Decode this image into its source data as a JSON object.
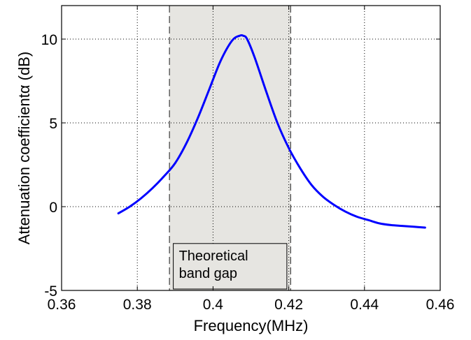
{
  "chart_data": {
    "type": "line",
    "title": "",
    "xlabel": "Frequency(MHz)",
    "ylabel": "Attenuation coefficientα (dB)",
    "xlim": [
      0.36,
      0.46
    ],
    "ylim": [
      -5,
      12
    ],
    "xticks": [
      0.36,
      0.38,
      0.4,
      0.42,
      0.44,
      0.46
    ],
    "xtick_labels": [
      "0.36",
      "0.38",
      "0.4",
      "0.42",
      "0.44",
      "0.46"
    ],
    "yticks": [
      -5,
      0,
      5,
      10
    ],
    "ytick_labels": [
      "-5",
      "0",
      "5",
      "10"
    ],
    "grid": true,
    "series": [
      {
        "color": "#0000ff",
        "x": [
          0.375,
          0.378,
          0.381,
          0.384,
          0.387,
          0.39,
          0.393,
          0.396,
          0.399,
          0.402,
          0.405,
          0.407,
          0.408,
          0.409,
          0.411,
          0.414,
          0.417,
          0.42,
          0.423,
          0.426,
          0.429,
          0.432,
          0.435,
          0.438,
          0.441,
          0.444,
          0.447,
          0.45,
          0.453,
          0.456
        ],
        "y": [
          -0.4,
          0.0,
          0.5,
          1.1,
          1.8,
          2.6,
          3.8,
          5.3,
          7.0,
          8.7,
          9.9,
          10.2,
          10.2,
          10.0,
          8.9,
          6.9,
          5.0,
          3.5,
          2.3,
          1.3,
          0.6,
          0.1,
          -0.3,
          -0.6,
          -0.8,
          -1.0,
          -1.1,
          -1.15,
          -1.2,
          -1.25
        ]
      }
    ],
    "band": {
      "x_start": 0.3885,
      "x_end": 0.4205,
      "fill": "#e6e5e1",
      "label_lines": [
        "Theoretical",
        "band gap"
      ]
    }
  }
}
